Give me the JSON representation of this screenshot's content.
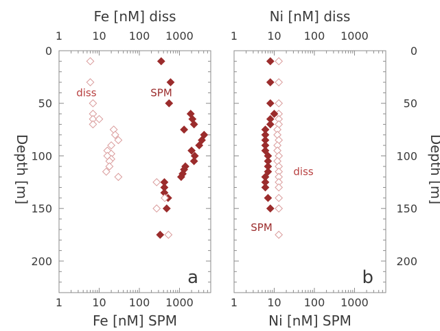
{
  "chart_data": [
    {
      "type": "scatter",
      "panel_label": "a",
      "top_xlabel": "Fe [nM] diss",
      "bottom_xlabel": "Fe [nM] SPM",
      "ylabel": "Depth [m]",
      "x_scale": "log",
      "xlim": [
        1,
        6000
      ],
      "x_tick_labels": [
        "1",
        "10",
        "100",
        "1000"
      ],
      "ylim": [
        0,
        230
      ],
      "y_reversed": true,
      "y_tick_labels": [
        "0",
        "50",
        "100",
        "150",
        "200"
      ],
      "colors": {
        "diss": "#d99a9a",
        "spm": "#9b2c2c"
      },
      "annotations": [
        {
          "text": "diss",
          "x": 2.7,
          "y": 40,
          "color": "#b84040"
        },
        {
          "text": "SPM",
          "x": 190,
          "y": 40,
          "color": "#9b2c2c"
        }
      ],
      "series": [
        {
          "name": "diss",
          "marker": "hollow-diamond",
          "points": [
            [
              6,
              10
            ],
            [
              6,
              30
            ],
            [
              7,
              50
            ],
            [
              7,
              60
            ],
            [
              7,
              65
            ],
            [
              7,
              70
            ],
            [
              10,
              65
            ],
            [
              23,
              75
            ],
            [
              25,
              80
            ],
            [
              30,
              85
            ],
            [
              20,
              90
            ],
            [
              16,
              95
            ],
            [
              20,
              98
            ],
            [
              16,
              100
            ],
            [
              20,
              103
            ],
            [
              18,
              105
            ],
            [
              18,
              110
            ],
            [
              15,
              115
            ],
            [
              30,
              120
            ]
          ]
        },
        {
          "name": "SPM",
          "marker": "filled-diamond",
          "points": [
            [
              350,
              10
            ],
            [
              600,
              30
            ],
            [
              550,
              50
            ],
            [
              1900,
              60
            ],
            [
              2100,
              65
            ],
            [
              2300,
              70
            ],
            [
              1300,
              75
            ],
            [
              4100,
              80
            ],
            [
              3600,
              85
            ],
            [
              3100,
              90
            ],
            [
              2000,
              95
            ],
            [
              2400,
              100
            ],
            [
              2300,
              105
            ],
            [
              1400,
              110
            ],
            [
              1300,
              113
            ],
            [
              1200,
              117
            ],
            [
              1100,
              120
            ],
            [
              420,
              125
            ],
            [
              420,
              130
            ],
            [
              420,
              135
            ],
            [
              520,
              140
            ],
            [
              480,
              150
            ],
            [
              330,
              175
            ]
          ]
        },
        {
          "name": "",
          "marker": "hollow-diamond",
          "points": [
            [
              270,
              125
            ],
            [
              430,
              140
            ],
            [
              270,
              150
            ],
            [
              530,
              175
            ]
          ]
        }
      ]
    },
    {
      "type": "scatter",
      "panel_label": "b",
      "top_xlabel": "Ni [nM] diss",
      "bottom_xlabel": "Ni [nM] SPM",
      "ylabel": "Depth [m]",
      "x_scale": "log",
      "xlim": [
        1,
        6000
      ],
      "x_tick_labels": [
        "1",
        "10",
        "100",
        "1000"
      ],
      "ylim": [
        0,
        230
      ],
      "y_reversed": true,
      "y_tick_labels": [
        "0",
        "50",
        "100",
        "150",
        "200"
      ],
      "colors": {
        "diss": "#d99a9a",
        "spm": "#9b2c2c"
      },
      "annotations": [
        {
          "text": "diss",
          "x": 30,
          "y": 115,
          "color": "#b84040"
        },
        {
          "text": "SPM",
          "x": 2.6,
          "y": 168,
          "color": "#9b2c2c"
        }
      ],
      "series": [
        {
          "name": "diss",
          "marker": "hollow-diamond",
          "points": [
            [
              13,
              10
            ],
            [
              13,
              30
            ],
            [
              13,
              50
            ],
            [
              13,
              60
            ],
            [
              13,
              65
            ],
            [
              13,
              70
            ],
            [
              12,
              75
            ],
            [
              12,
              80
            ],
            [
              13,
              85
            ],
            [
              12,
              90
            ],
            [
              12,
              95
            ],
            [
              13,
              100
            ],
            [
              12,
              105
            ],
            [
              13,
              110
            ],
            [
              13,
              115
            ],
            [
              13,
              120
            ],
            [
              13,
              125
            ],
            [
              13,
              130
            ],
            [
              13,
              140
            ],
            [
              13,
              150
            ],
            [
              13,
              175
            ]
          ]
        },
        {
          "name": "SPM",
          "marker": "filled-diamond",
          "points": [
            [
              8,
              10
            ],
            [
              8,
              30
            ],
            [
              8,
              50
            ],
            [
              10,
              60
            ],
            [
              8,
              65
            ],
            [
              8,
              70
            ],
            [
              6,
              75
            ],
            [
              6,
              80
            ],
            [
              6,
              85
            ],
            [
              6,
              90
            ],
            [
              6,
              95
            ],
            [
              7,
              100
            ],
            [
              7,
              105
            ],
            [
              7,
              110
            ],
            [
              7,
              115
            ],
            [
              6,
              120
            ],
            [
              6,
              125
            ],
            [
              6,
              130
            ],
            [
              7,
              140
            ],
            [
              8,
              150
            ]
          ]
        }
      ]
    }
  ]
}
